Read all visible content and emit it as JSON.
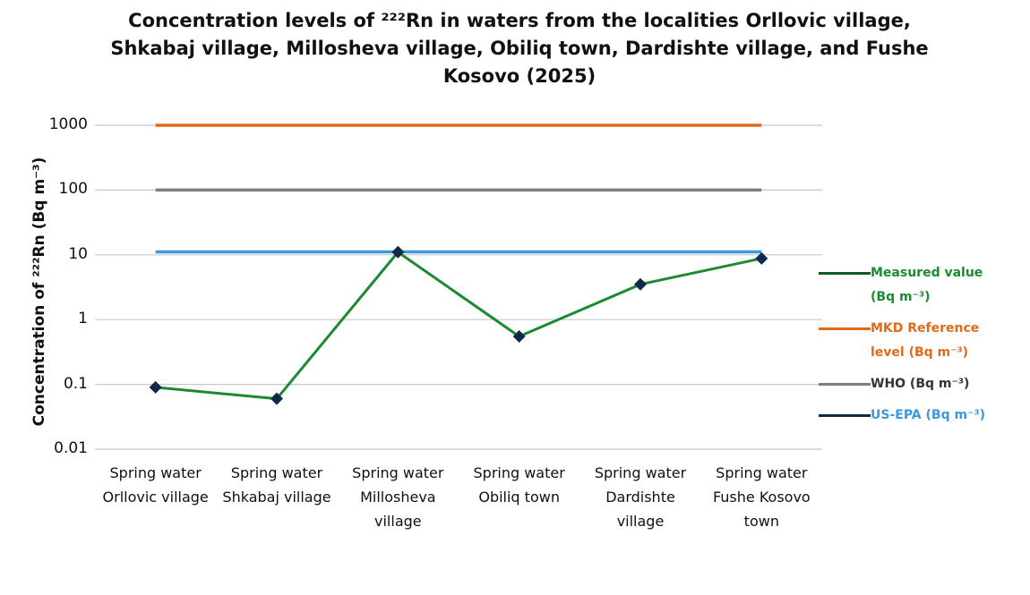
{
  "chart_data": {
    "type": "line",
    "title": "Concentration levels of ²²²Rn in waters from the localities Orllovic village, Shkabaj village, Millosheva village, Obiliq town, Dardishte village, and Fushe Kosovo (2025)",
    "y_label": "Concentration of ²²²Rn (Bq m⁻³)",
    "categories": [
      "Spring water Orllovic village",
      "Spring water Shkabaj village",
      "Spring water Millosheva village",
      "Spring water Obiliq town",
      "Spring water Dardishte village",
      "Spring water Fushe Kosovo town"
    ],
    "y_scale": "log",
    "ylim": [
      0.01,
      1000
    ],
    "yticks": [
      0.01,
      0.1,
      1,
      10,
      100,
      1000
    ],
    "grid": true,
    "legend": "right",
    "series": [
      {
        "name": "Measured value (Bq m⁻³)",
        "color": "#1b8a30",
        "marker_color": "#10284a",
        "values": [
          0.09,
          0.06,
          11,
          0.55,
          3.5,
          8.8
        ]
      },
      {
        "name": "MKD Reference level (Bq m⁻³)",
        "color": "#e06a1b",
        "values": [
          1000,
          1000,
          1000,
          1000,
          1000,
          1000
        ]
      },
      {
        "name": "WHO (Bq m⁻³)",
        "color": "#7f7f7f",
        "values": [
          100,
          100,
          100,
          100,
          100,
          100
        ]
      },
      {
        "name": "US-EPA (Bq m⁻³)",
        "color": "#3a9ad9",
        "values": [
          11.1,
          11.1,
          11.1,
          11.1,
          11.1,
          11.1
        ]
      }
    ]
  }
}
